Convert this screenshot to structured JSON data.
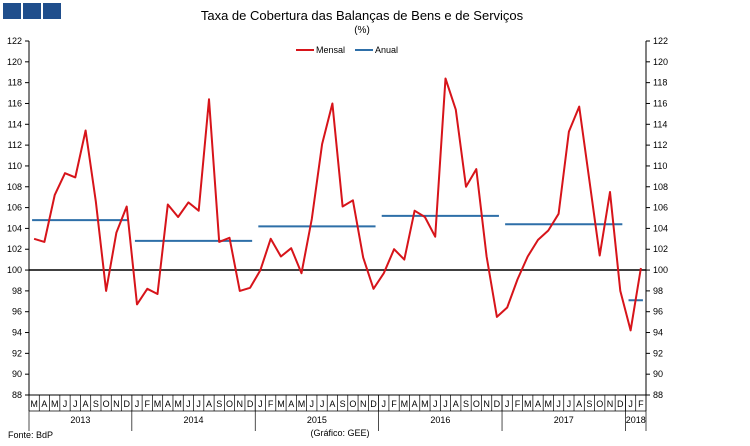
{
  "header": {
    "title": "Taxa de Cobertura das Balanças de Bens e de Serviços",
    "subtitle": "(%)"
  },
  "footer": {
    "source": "Fonte: BdP",
    "credit": "(Gráfico: GEE)"
  },
  "colors": {
    "mensal": "#d7141a",
    "anual": "#2e6fa8",
    "logo": "#1f4e8c",
    "reference": "#000000"
  },
  "chart_data": {
    "type": "line",
    "title": "Taxa de Cobertura das Balanças de Bens e de Serviços",
    "subtitle": "(%)",
    "ylim": [
      88,
      122
    ],
    "y_ticks": [
      88,
      90,
      92,
      94,
      96,
      98,
      100,
      102,
      104,
      106,
      108,
      110,
      112,
      114,
      116,
      118,
      120,
      122
    ],
    "y_axis_both_sides": true,
    "legend": {
      "placement": "top-center",
      "entries": [
        "Mensal",
        "Anual"
      ]
    },
    "reference_line": 100,
    "x_month_labels": [
      "M",
      "A",
      "M",
      "J",
      "J",
      "A",
      "S",
      "O",
      "N",
      "D",
      "J",
      "F",
      "M",
      "A",
      "M",
      "J",
      "J",
      "A",
      "S",
      "O",
      "N",
      "D",
      "J",
      "F",
      "M",
      "A",
      "M",
      "J",
      "J",
      "A",
      "S",
      "O",
      "N",
      "D",
      "J",
      "F",
      "M",
      "A",
      "M",
      "J",
      "J",
      "A",
      "S",
      "O",
      "N",
      "D",
      "J",
      "F",
      "M",
      "A",
      "M",
      "J",
      "J",
      "A",
      "S",
      "O",
      "N",
      "D",
      "J",
      "F"
    ],
    "x_year_groups": [
      {
        "label": "2013",
        "count": 10
      },
      {
        "label": "2014",
        "count": 12
      },
      {
        "label": "2015",
        "count": 12
      },
      {
        "label": "2016",
        "count": 12
      },
      {
        "label": "2017",
        "count": 12
      },
      {
        "label": "2018",
        "count": 2
      }
    ],
    "series": [
      {
        "name": "Mensal",
        "values": [
          103.0,
          102.7,
          107.2,
          109.3,
          108.9,
          113.4,
          106.6,
          98.0,
          103.6,
          106.1,
          96.7,
          98.2,
          97.7,
          106.3,
          105.1,
          106.5,
          105.7,
          116.4,
          102.7,
          103.1,
          98.0,
          98.3,
          100.0,
          103.0,
          101.3,
          102.1,
          99.7,
          104.9,
          112.1,
          116.0,
          106.1,
          106.7,
          101.2,
          98.2,
          99.7,
          102.0,
          101.0,
          105.7,
          105.1,
          103.2,
          118.4,
          115.4,
          108.0,
          109.7,
          101.3,
          95.5,
          96.4,
          99.1,
          101.3,
          102.9,
          103.8,
          105.4,
          113.3,
          115.7,
          108.6,
          101.4,
          107.5,
          98.0,
          94.2,
          100.2
        ]
      },
      {
        "name": "Anual",
        "segments": [
          {
            "start": 0,
            "end": 9,
            "value": 104.8
          },
          {
            "start": 10,
            "end": 21,
            "value": 102.8
          },
          {
            "start": 22,
            "end": 33,
            "value": 104.2
          },
          {
            "start": 34,
            "end": 45,
            "value": 105.2
          },
          {
            "start": 46,
            "end": 57,
            "value": 104.4
          },
          {
            "start": 58,
            "end": 59,
            "value": 97.1
          }
        ]
      }
    ]
  }
}
